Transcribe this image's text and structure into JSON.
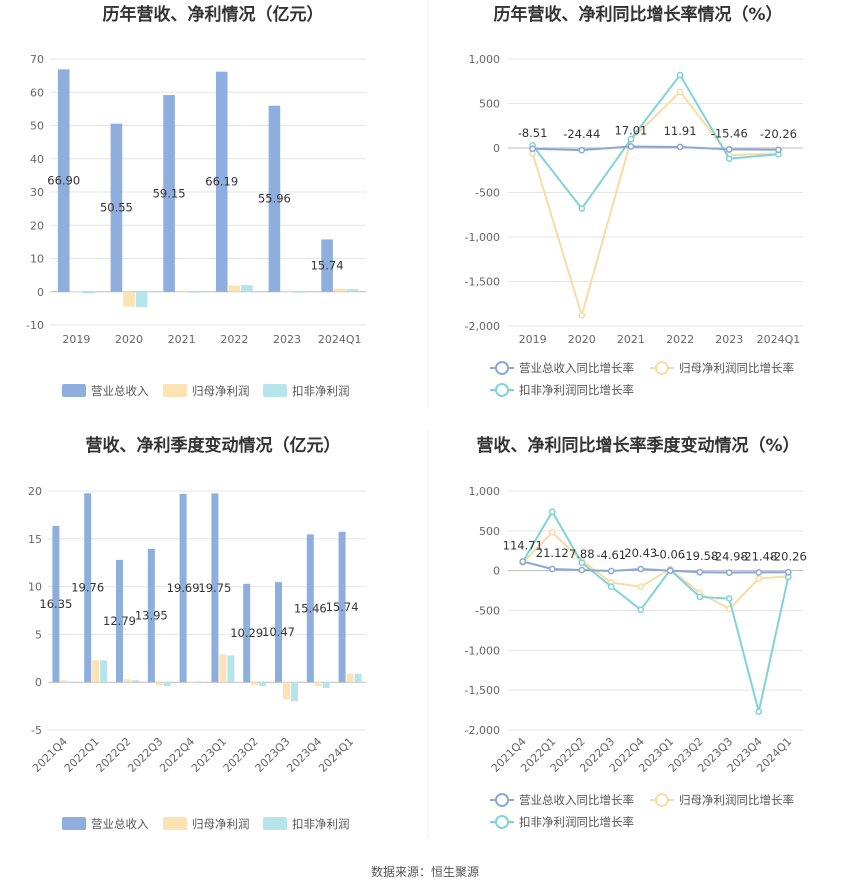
{
  "source": "数据来源：恒生聚源",
  "colors": {
    "revenue": "#8eaede",
    "parent": "#fde3b4",
    "deducted": "#b5e4ea",
    "deducted_line": "#7fd3da",
    "rev_line": "#8aa7d6",
    "parent_line": "#f7dca4"
  },
  "chart_data": [
    {
      "type": "bar",
      "title": "历年营收、净利情况（亿元）",
      "categories": [
        "2019",
        "2020",
        "2021",
        "2022",
        "2023",
        "2024Q1"
      ],
      "series": [
        {
          "name": "营业总收入",
          "values": [
            66.9,
            50.55,
            59.15,
            66.19,
            55.96,
            15.74
          ],
          "labels": [
            "66.90",
            "50.55",
            "59.15",
            "66.19",
            "55.96",
            "15.74"
          ]
        },
        {
          "name": "归母净利润",
          "values": [
            0.2,
            -4.5,
            -0.2,
            1.9,
            0.3,
            0.9
          ]
        },
        {
          "name": "扣非净利润",
          "values": [
            -0.5,
            -4.6,
            -0.3,
            2.0,
            -0.3,
            0.8
          ]
        }
      ],
      "yticks": [
        -10,
        0,
        10,
        20,
        30,
        40,
        50,
        60,
        70
      ],
      "ylim": [
        -10,
        70
      ],
      "legend": "bottom"
    },
    {
      "type": "line",
      "title": "历年营收、净利同比增长率情况（%）",
      "categories": [
        "2019",
        "2020",
        "2021",
        "2022",
        "2023",
        "2024Q1"
      ],
      "series": [
        {
          "name": "营业总收入同比增长率",
          "values": [
            -8.51,
            -24.44,
            17.01,
            11.91,
            -15.46,
            -20.26
          ],
          "labels": [
            "-8.51",
            "-24.44",
            "17.01",
            "11.91",
            "-15.46",
            "-20.26"
          ]
        },
        {
          "name": "归母净利润同比增长率",
          "values": [
            -60,
            -1880,
            90,
            630,
            -80,
            -60
          ]
        },
        {
          "name": "扣非净利润同比增长率",
          "values": [
            30,
            -680,
            100,
            820,
            -120,
            -70
          ]
        }
      ],
      "yticks": [
        -2000,
        -1500,
        -1000,
        -500,
        0,
        500,
        1000
      ],
      "ytick_labels": [
        "-2,000",
        "-1,500",
        "-1,000",
        "-500",
        "0",
        "500",
        "1,000"
      ],
      "ylim": [
        -2000,
        1000
      ],
      "legend": "bottom"
    },
    {
      "type": "bar",
      "title": "营收、净利季度变动情况（亿元）",
      "categories": [
        "2021Q4",
        "2022Q1",
        "2022Q2",
        "2022Q3",
        "2022Q4",
        "2023Q1",
        "2023Q2",
        "2023Q3",
        "2023Q4",
        "2024Q1"
      ],
      "series": [
        {
          "name": "营业总收入",
          "values": [
            16.35,
            19.76,
            12.79,
            13.95,
            19.69,
            19.75,
            10.29,
            10.47,
            15.46,
            15.74
          ],
          "labels": [
            "16.35",
            "19.76",
            "12.79",
            "13.95",
            "19.69",
            "19.75",
            "10.29",
            "10.47",
            "15.46",
            "15.74"
          ]
        },
        {
          "name": "归母净利润",
          "values": [
            0.2,
            2.3,
            0.3,
            -0.3,
            -0.1,
            2.9,
            -0.3,
            -1.8,
            -0.4,
            0.9
          ]
        },
        {
          "name": "扣非净利润",
          "values": [
            -0.1,
            2.3,
            0.2,
            -0.4,
            -0.1,
            2.8,
            -0.4,
            -2.0,
            -0.6,
            0.9
          ]
        }
      ],
      "yticks": [
        -5,
        0,
        5,
        10,
        15,
        20
      ],
      "ylim": [
        -5,
        20
      ],
      "legend": "bottom"
    },
    {
      "type": "line",
      "title": "营收、净利同比增长率季度变动情况（%）",
      "categories": [
        "2021Q4",
        "2022Q1",
        "2022Q2",
        "2022Q3",
        "2022Q4",
        "2023Q1",
        "2023Q2",
        "2023Q3",
        "2023Q4",
        "2024Q1"
      ],
      "series": [
        {
          "name": "营业总收入同比增长率",
          "values": [
            114.71,
            21.12,
            7.88,
            -4.61,
            20.43,
            -0.06,
            -19.58,
            -24.98,
            -21.48,
            -20.26
          ],
          "labels": [
            "114.71",
            "21.12",
            "7.88",
            "-4.61",
            "20.43",
            "-0.06",
            "-19.58",
            "-24.98",
            "-21.48",
            "-20.26"
          ]
        },
        {
          "name": "归母净利润同比增长率",
          "values": [
            100,
            480,
            130,
            -150,
            -200,
            20,
            -280,
            -480,
            -100,
            -70
          ]
        },
        {
          "name": "扣非净利润同比增长率",
          "values": [
            110,
            740,
            100,
            -200,
            -490,
            10,
            -330,
            -350,
            -1770,
            -80
          ]
        }
      ],
      "yticks": [
        -2000,
        -1500,
        -1000,
        -500,
        0,
        500,
        1000
      ],
      "ytick_labels": [
        "-2,000",
        "-1,500",
        "-1,000",
        "-500",
        "0",
        "500",
        "1,000"
      ],
      "ylim": [
        -2000,
        1000
      ],
      "legend": "bottom"
    }
  ]
}
